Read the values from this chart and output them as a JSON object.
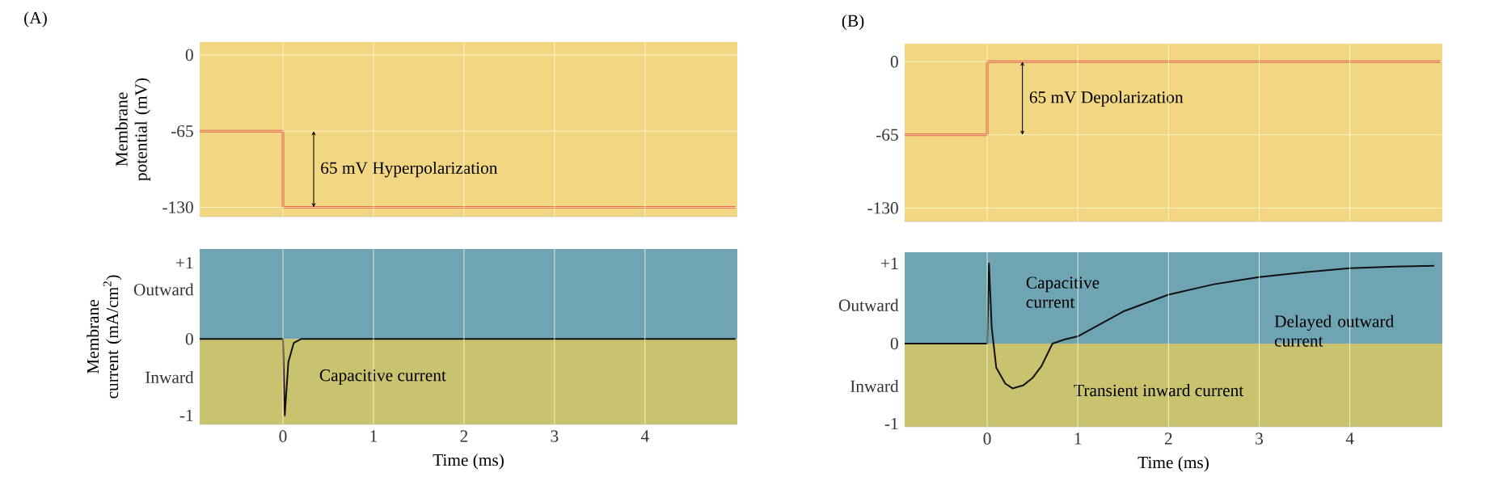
{
  "chart_data": [
    {
      "type": "line",
      "ylabel": "Membrane potential (mV)",
      "xlim": [
        -0.92,
        5.02
      ],
      "ylim": [
        -138,
        11
      ],
      "xticks": [
        0,
        1,
        2,
        3,
        4
      ],
      "yticks": [
        0,
        -65,
        -130
      ],
      "tick_labels": "y",
      "grid": true,
      "bands": [
        {
          "axis": "y",
          "from": -138,
          "to": 11,
          "color": "#f2d682"
        }
      ],
      "series": [
        {
          "color": "#e0603a",
          "x": [
            -0.92,
            0,
            0,
            5.0
          ],
          "values": [
            -65,
            -65,
            -130,
            -130
          ]
        }
      ],
      "annotations": [
        "(A)",
        "65 mV Hyperpolarization"
      ]
    },
    {
      "type": "line",
      "ylabel": "Membrane current (mA/cm$^{2}$)",
      "xlabel": "Time (ms)",
      "xlim": [
        -0.92,
        5.02
      ],
      "ylim": [
        -1.12,
        1.18
      ],
      "xticks": [
        0,
        1,
        2,
        3,
        4
      ],
      "yticks": [
        {
          "value": 1,
          "label": "+1"
        },
        {
          "value": 0.65,
          "label": "Outward"
        },
        0,
        {
          "value": -0.5,
          "label": "Inward"
        },
        -1
      ],
      "grid": "x",
      "bands": [
        {
          "axis": "y",
          "from": 0,
          "to": 1.18,
          "color": "#6fa4b3"
        },
        {
          "axis": "y",
          "from": -1.12,
          "to": 0,
          "color": "#c9c26e"
        }
      ],
      "series": [
        {
          "color": "#111111",
          "x": [
            -0.92,
            0,
            0.02,
            0.06,
            0.12,
            0.2,
            5.0
          ],
          "values": [
            0,
            0,
            -1,
            -0.3,
            -0.05,
            0,
            0
          ]
        }
      ],
      "annotations": [
        "Capacitive current"
      ]
    },
    {
      "type": "line",
      "xlim": [
        -0.91,
        5.02
      ],
      "ylim": [
        -142,
        16
      ],
      "xticks": [
        0,
        1,
        2,
        3,
        4
      ],
      "yticks": [
        0,
        -65,
        -130
      ],
      "tick_labels": "y",
      "grid": true,
      "bands": [
        {
          "axis": "y",
          "from": -142,
          "to": 16,
          "color": "#f2d682"
        }
      ],
      "series": [
        {
          "color": "#e0603a",
          "x": [
            -0.91,
            0,
            0,
            5.0
          ],
          "values": [
            -65,
            -65,
            0,
            0
          ]
        }
      ],
      "annotations": [
        "(B)",
        "65 mV Depolarization"
      ]
    },
    {
      "type": "line",
      "xlabel": "Time (ms)",
      "xlim": [
        -0.91,
        5.02
      ],
      "ylim": [
        -1.04,
        1.14
      ],
      "xticks": [
        0,
        1,
        2,
        3,
        4
      ],
      "yticks": [
        {
          "value": 1,
          "label": "+1"
        },
        {
          "value": 0.48,
          "label": "Outward"
        },
        0,
        {
          "value": -0.53,
          "label": "Inward"
        },
        -1
      ],
      "grid": "x",
      "bands": [
        {
          "axis": "y",
          "from": 0,
          "to": 1.14,
          "color": "#6fa4b3"
        },
        {
          "axis": "y",
          "from": -1.04,
          "to": 0,
          "color": "#c9c26e"
        }
      ],
      "series": [
        {
          "color": "#111111",
          "x": [
            -0.91,
            0,
            0.02,
            0.05,
            0.1,
            0.2,
            0.28,
            0.4,
            0.5,
            0.6,
            0.72,
            0.85,
            1.0,
            1.5,
            2.0,
            2.5,
            3.0,
            3.5,
            4.0,
            4.5,
            4.93
          ],
          "values": [
            0,
            0,
            1.0,
            0.2,
            -0.3,
            -0.5,
            -0.56,
            -0.52,
            -0.43,
            -0.28,
            0,
            0.05,
            0.09,
            0.4,
            0.61,
            0.74,
            0.83,
            0.89,
            0.94,
            0.96,
            0.97
          ]
        }
      ],
      "annotations": [
        "Capacitive current",
        "Delayed outward current",
        "Transient inward current"
      ]
    }
  ]
}
